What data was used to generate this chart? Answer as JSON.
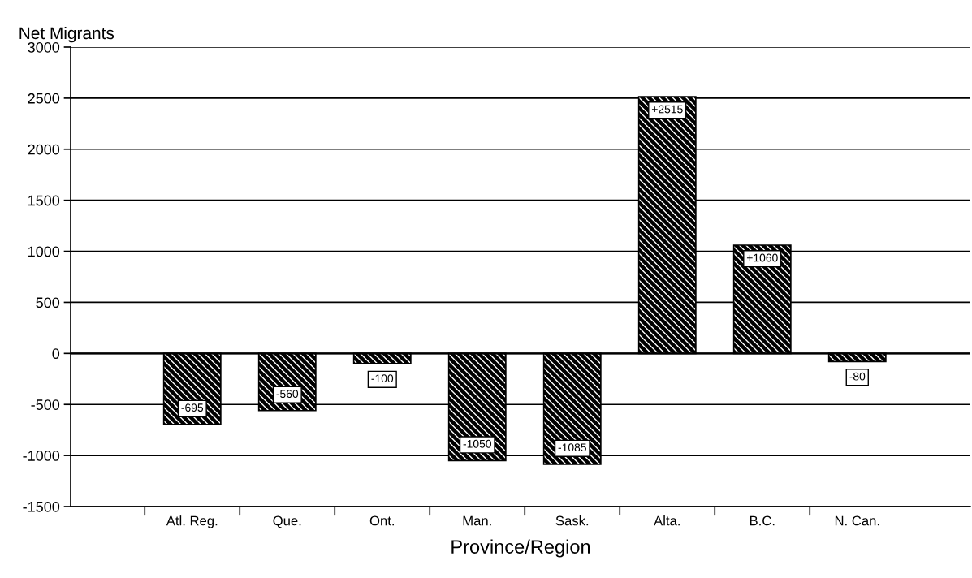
{
  "chart_data": {
    "type": "bar",
    "xlabel": "Province/Region",
    "ylabel": "Net Migrants",
    "categories": [
      "Atl. Reg.",
      "Que.",
      "Ont.",
      "Man.",
      "Sask.",
      "Alta.",
      "B.C.",
      "N. Can."
    ],
    "values": [
      -695,
      -560,
      -100,
      -1050,
      -1085,
      2515,
      1060,
      -80
    ],
    "value_labels": [
      "-695",
      "-560",
      "-100",
      "-1050",
      "-1085",
      "+2515",
      "+1060",
      "-80"
    ],
    "color": "#000000",
    "ylim": [
      -1500,
      3000
    ],
    "yticks": [
      -1500,
      -1000,
      -500,
      0,
      500,
      1000,
      1500,
      2000,
      2500,
      3000
    ],
    "grid": "y"
  }
}
